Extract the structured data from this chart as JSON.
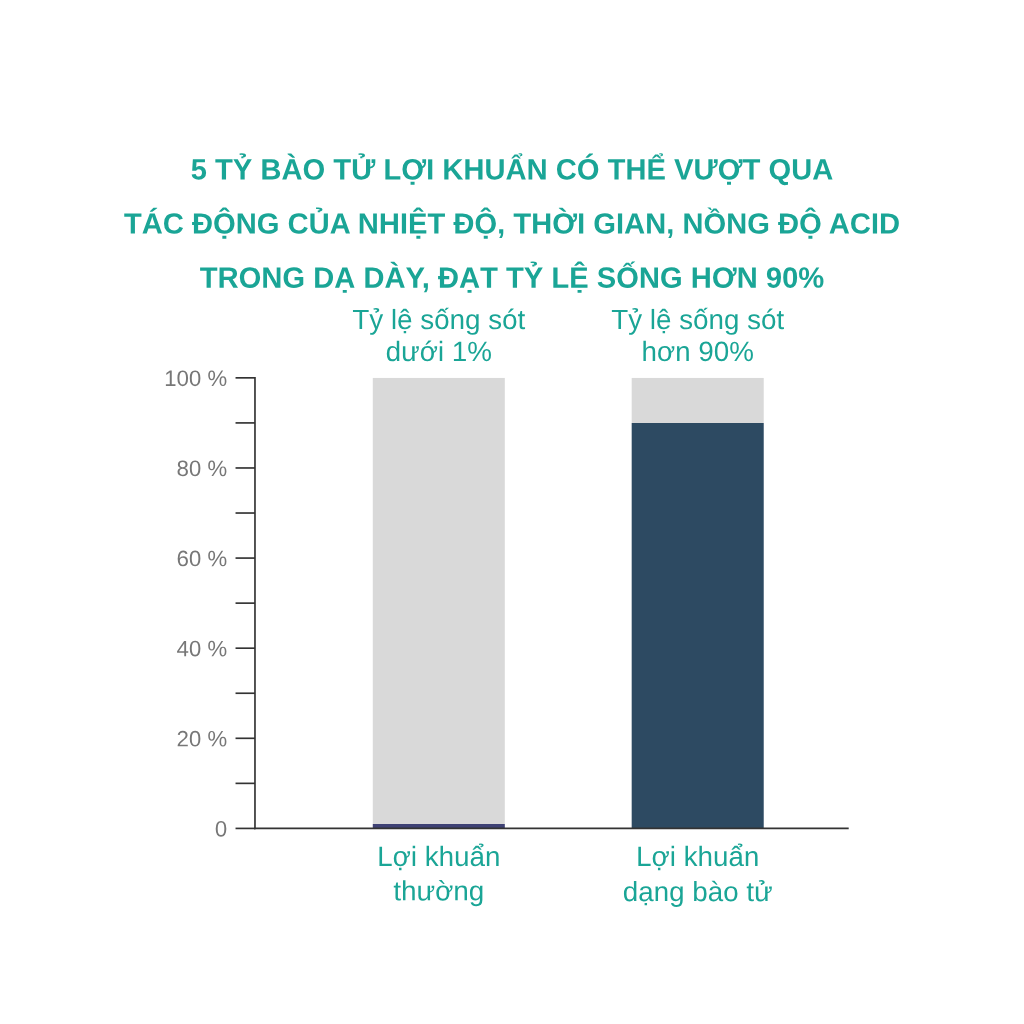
{
  "chart_data": {
    "type": "bar",
    "title": "5 TỶ BÀO TỬ LỢI KHUẨN CÓ THỂ VƯỢT QUA\nTÁC ĐỘNG CỦA NHIỆT ĐỘ, THỜI GIAN, NỒNG ĐỘ ACID\nTRONG DẠ DÀY, ĐẠT TỶ LỆ SỐNG HƠN 90%",
    "categories": [
      "Lợi khuẩn\nthường",
      "Lợi khuẩn\ndạng bào tử"
    ],
    "stacked": true,
    "series": [
      {
        "colors": [
          "#3f4275",
          "#2d4a62"
        ],
        "values": [
          1,
          90
        ]
      },
      {
        "color": "#d9d9d9",
        "values": [
          99,
          10
        ]
      }
    ],
    "ylim": [
      0,
      100
    ],
    "yticks": [
      0,
      {
        "value": 20,
        "label": "20 %"
      },
      {
        "value": 40,
        "label": "40 %"
      },
      {
        "value": 60,
        "label": "60 %"
      },
      {
        "value": 80,
        "label": "80 %"
      },
      {
        "value": 100,
        "label": "100 %"
      }
    ],
    "annotations": [
      {
        "text": "Tỷ lệ sống sót\ndưới 1%",
        "x": "Lợi khuẩn\nthường",
        "y": 100
      },
      {
        "text": "Tỷ lệ sống sót\nhơn 90%",
        "x": "Lợi khuẩn\ndạng bào tử",
        "y": 100
      }
    ],
    "grid": false,
    "legend": false
  }
}
